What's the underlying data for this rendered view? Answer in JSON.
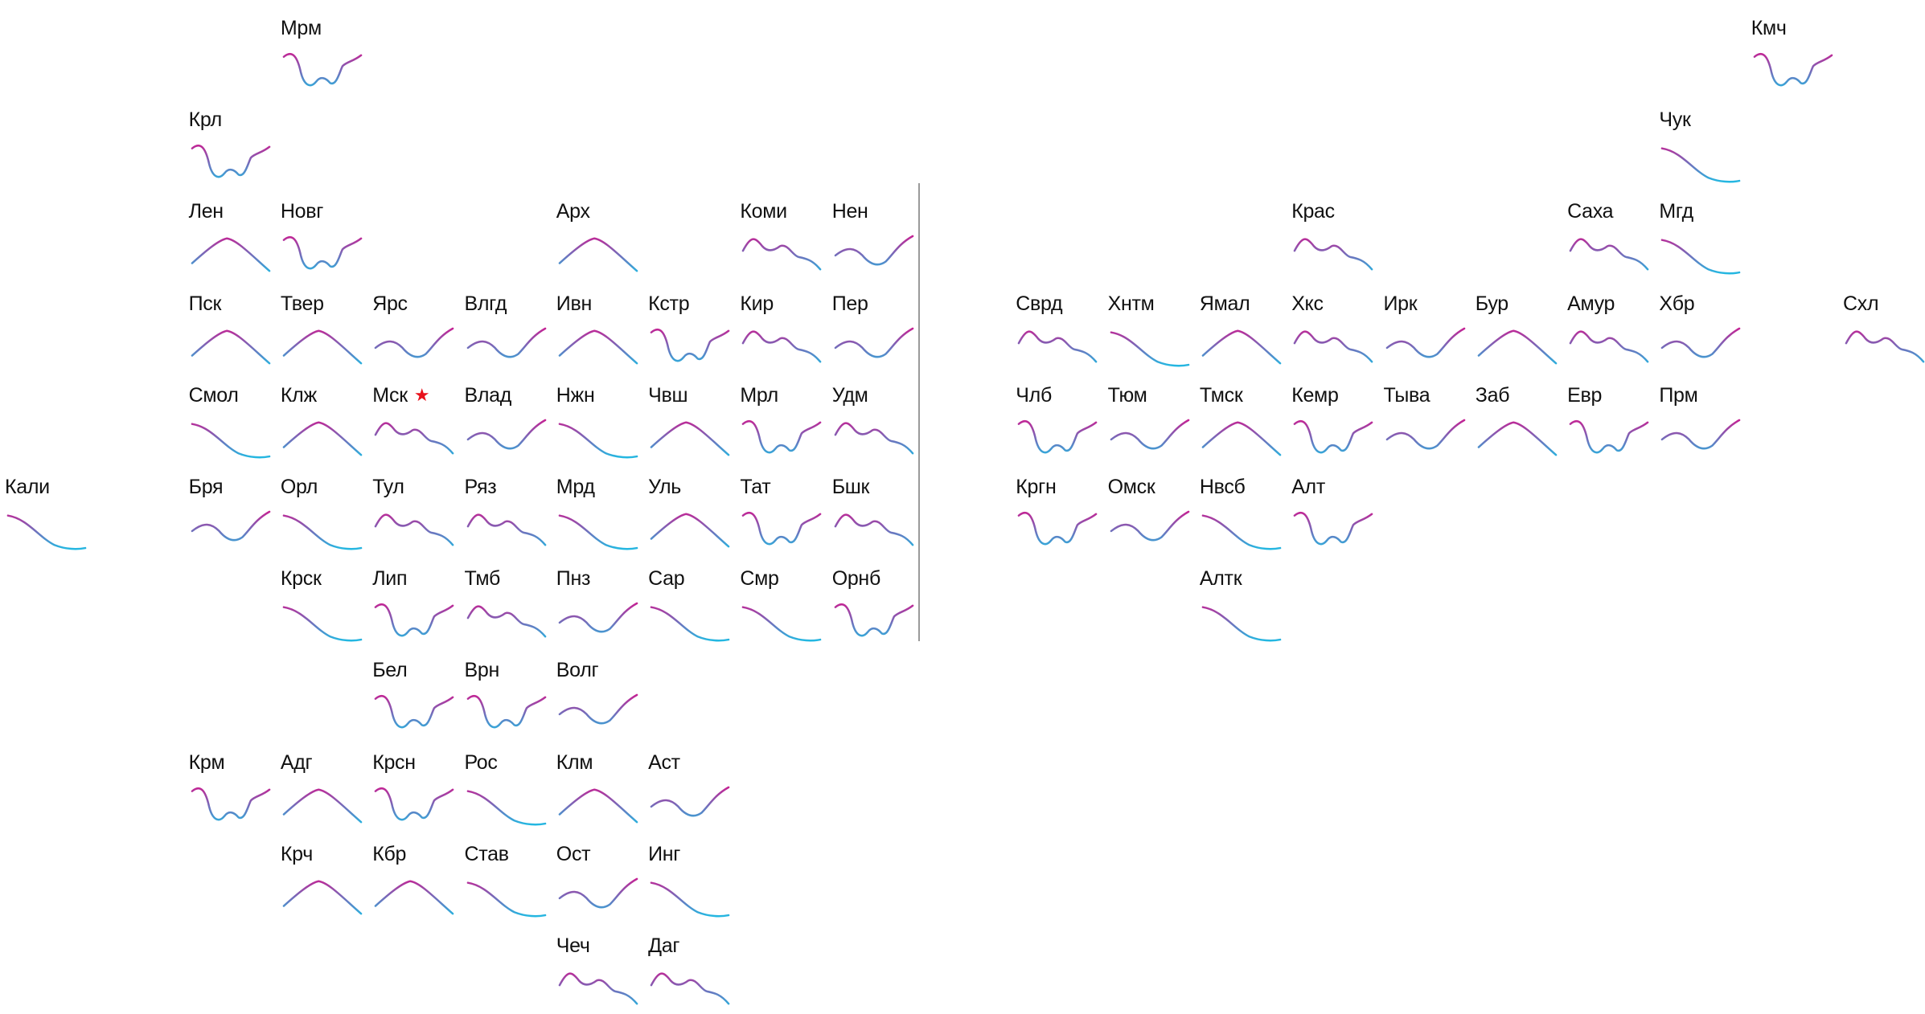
{
  "colors": {
    "trend_start": "#d4148c",
    "trend_end": "#1ebde4",
    "text": "#111111",
    "capital_marker": "#e8121c",
    "divider": "#9a9a9a"
  },
  "capital_marker_icon": "star-icon",
  "capital_marker_glyph": "★",
  "regions": [
    {
      "label": "Мрм",
      "col": 3,
      "row": 0,
      "shape": "wave"
    },
    {
      "label": "Кмч",
      "col": 19,
      "row": 0,
      "shape": "wave"
    },
    {
      "label": "Крл",
      "col": 2,
      "row": 1,
      "shape": "wave"
    },
    {
      "label": "Чук",
      "col": 18,
      "row": 1,
      "shape": "fall"
    },
    {
      "label": "Лен",
      "col": 2,
      "row": 2,
      "shape": "hill"
    },
    {
      "label": "Новг",
      "col": 3,
      "row": 2,
      "shape": "wave"
    },
    {
      "label": "Арх",
      "col": 6,
      "row": 2,
      "shape": "hill"
    },
    {
      "label": "Коми",
      "col": 8,
      "row": 2,
      "shape": "bumps"
    },
    {
      "label": "Нен",
      "col": 9,
      "row": 2,
      "shape": "valley"
    },
    {
      "label": "Крас",
      "col": 14,
      "row": 2,
      "shape": "bumps"
    },
    {
      "label": "Саха",
      "col": 17,
      "row": 2,
      "shape": "bumps"
    },
    {
      "label": "Мгд",
      "col": 18,
      "row": 2,
      "shape": "fall"
    },
    {
      "label": "Пск",
      "col": 2,
      "row": 3,
      "shape": "hill"
    },
    {
      "label": "Твер",
      "col": 3,
      "row": 3,
      "shape": "hill"
    },
    {
      "label": "Ярс",
      "col": 4,
      "row": 3,
      "shape": "valley"
    },
    {
      "label": "Влгд",
      "col": 5,
      "row": 3,
      "shape": "valley"
    },
    {
      "label": "Ивн",
      "col": 6,
      "row": 3,
      "shape": "hill"
    },
    {
      "label": "Кстр",
      "col": 7,
      "row": 3,
      "shape": "wave"
    },
    {
      "label": "Кир",
      "col": 8,
      "row": 3,
      "shape": "bumps"
    },
    {
      "label": "Пер",
      "col": 9,
      "row": 3,
      "shape": "valley"
    },
    {
      "label": "Сврд",
      "col": 11,
      "row": 3,
      "shape": "bumps"
    },
    {
      "label": "Хнтм",
      "col": 12,
      "row": 3,
      "shape": "fall"
    },
    {
      "label": "Ямал",
      "col": 13,
      "row": 3,
      "shape": "hill"
    },
    {
      "label": "Хкс",
      "col": 14,
      "row": 3,
      "shape": "bumps"
    },
    {
      "label": "Ирк",
      "col": 15,
      "row": 3,
      "shape": "valley"
    },
    {
      "label": "Бур",
      "col": 16,
      "row": 3,
      "shape": "hill"
    },
    {
      "label": "Амур",
      "col": 17,
      "row": 3,
      "shape": "bumps"
    },
    {
      "label": "Хбр",
      "col": 18,
      "row": 3,
      "shape": "valley"
    },
    {
      "label": "Схл",
      "col": 20,
      "row": 3,
      "shape": "bumps"
    },
    {
      "label": "Смол",
      "col": 2,
      "row": 4,
      "shape": "fall"
    },
    {
      "label": "Клж",
      "col": 3,
      "row": 4,
      "shape": "hill"
    },
    {
      "label": "Мск",
      "col": 4,
      "row": 4,
      "shape": "bumps",
      "capital": true
    },
    {
      "label": "Влад",
      "col": 5,
      "row": 4,
      "shape": "valley"
    },
    {
      "label": "Нжн",
      "col": 6,
      "row": 4,
      "shape": "fall"
    },
    {
      "label": "Чвш",
      "col": 7,
      "row": 4,
      "shape": "hill"
    },
    {
      "label": "Мрл",
      "col": 8,
      "row": 4,
      "shape": "wave"
    },
    {
      "label": "Удм",
      "col": 9,
      "row": 4,
      "shape": "bumps"
    },
    {
      "label": "Члб",
      "col": 11,
      "row": 4,
      "shape": "wave"
    },
    {
      "label": "Тюм",
      "col": 12,
      "row": 4,
      "shape": "valley"
    },
    {
      "label": "Тмск",
      "col": 13,
      "row": 4,
      "shape": "hill"
    },
    {
      "label": "Кемр",
      "col": 14,
      "row": 4,
      "shape": "wave"
    },
    {
      "label": "Тыва",
      "col": 15,
      "row": 4,
      "shape": "valley"
    },
    {
      "label": "Заб",
      "col": 16,
      "row": 4,
      "shape": "hill"
    },
    {
      "label": "Евр",
      "col": 17,
      "row": 4,
      "shape": "wave"
    },
    {
      "label": "Прм",
      "col": 18,
      "row": 4,
      "shape": "valley"
    },
    {
      "label": "Кали",
      "col": 0,
      "row": 5,
      "shape": "fall"
    },
    {
      "label": "Бря",
      "col": 2,
      "row": 5,
      "shape": "valley"
    },
    {
      "label": "Орл",
      "col": 3,
      "row": 5,
      "shape": "fall"
    },
    {
      "label": "Тул",
      "col": 4,
      "row": 5,
      "shape": "bumps"
    },
    {
      "label": "Ряз",
      "col": 5,
      "row": 5,
      "shape": "bumps"
    },
    {
      "label": "Мрд",
      "col": 6,
      "row": 5,
      "shape": "fall"
    },
    {
      "label": "Уль",
      "col": 7,
      "row": 5,
      "shape": "hill"
    },
    {
      "label": "Тат",
      "col": 8,
      "row": 5,
      "shape": "wave"
    },
    {
      "label": "Бшк",
      "col": 9,
      "row": 5,
      "shape": "bumps"
    },
    {
      "label": "Кргн",
      "col": 11,
      "row": 5,
      "shape": "wave"
    },
    {
      "label": "Омск",
      "col": 12,
      "row": 5,
      "shape": "valley"
    },
    {
      "label": "Нвсб",
      "col": 13,
      "row": 5,
      "shape": "fall"
    },
    {
      "label": "Алт",
      "col": 14,
      "row": 5,
      "shape": "wave"
    },
    {
      "label": "Крск",
      "col": 3,
      "row": 6,
      "shape": "fall"
    },
    {
      "label": "Лип",
      "col": 4,
      "row": 6,
      "shape": "wave"
    },
    {
      "label": "Тмб",
      "col": 5,
      "row": 6,
      "shape": "bumps"
    },
    {
      "label": "Пнз",
      "col": 6,
      "row": 6,
      "shape": "valley"
    },
    {
      "label": "Сар",
      "col": 7,
      "row": 6,
      "shape": "fall"
    },
    {
      "label": "Смр",
      "col": 8,
      "row": 6,
      "shape": "fall"
    },
    {
      "label": "Орнб",
      "col": 9,
      "row": 6,
      "shape": "wave"
    },
    {
      "label": "Алтк",
      "col": 13,
      "row": 6,
      "shape": "fall"
    },
    {
      "label": "Бел",
      "col": 4,
      "row": 7,
      "shape": "wave"
    },
    {
      "label": "Врн",
      "col": 5,
      "row": 7,
      "shape": "wave"
    },
    {
      "label": "Волг",
      "col": 6,
      "row": 7,
      "shape": "valley"
    },
    {
      "label": "Крм",
      "col": 2,
      "row": 8,
      "shape": "wave"
    },
    {
      "label": "Адг",
      "col": 3,
      "row": 8,
      "shape": "hill"
    },
    {
      "label": "Крсн",
      "col": 4,
      "row": 8,
      "shape": "wave"
    },
    {
      "label": "Рос",
      "col": 5,
      "row": 8,
      "shape": "fall"
    },
    {
      "label": "Клм",
      "col": 6,
      "row": 8,
      "shape": "hill"
    },
    {
      "label": "Аст",
      "col": 7,
      "row": 8,
      "shape": "valley"
    },
    {
      "label": "Крч",
      "col": 3,
      "row": 9,
      "shape": "hill"
    },
    {
      "label": "Кбр",
      "col": 4,
      "row": 9,
      "shape": "hill"
    },
    {
      "label": "Став",
      "col": 5,
      "row": 9,
      "shape": "fall"
    },
    {
      "label": "Ост",
      "col": 6,
      "row": 9,
      "shape": "valley"
    },
    {
      "label": "Инг",
      "col": 7,
      "row": 9,
      "shape": "fall"
    },
    {
      "label": "Чеч",
      "col": 6,
      "row": 10,
      "shape": "bumps"
    },
    {
      "label": "Даг",
      "col": 7,
      "row": 10,
      "shape": "bumps"
    }
  ]
}
